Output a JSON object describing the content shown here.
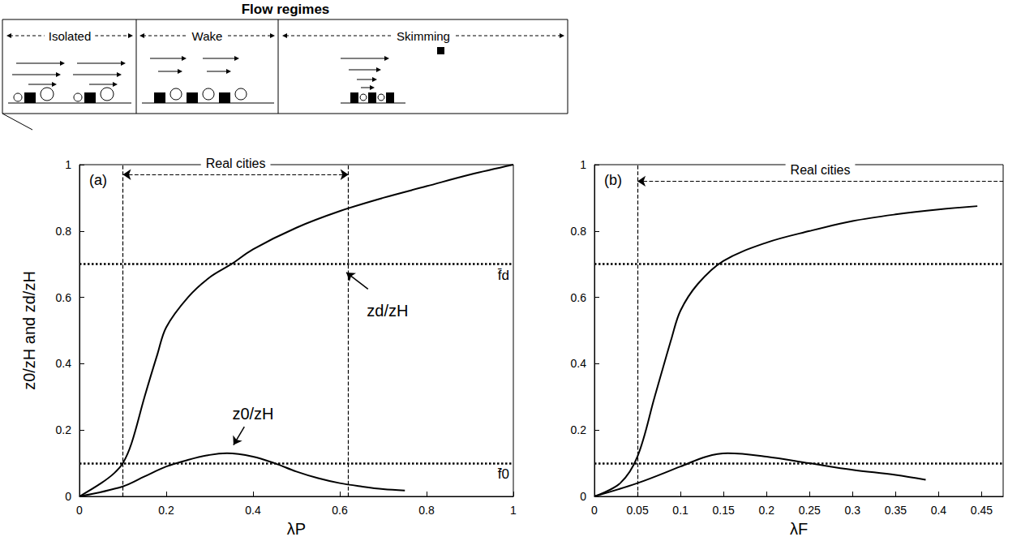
{
  "header": {
    "title": "Flow regimes",
    "regimes": [
      "Isolated",
      "Wake",
      "Skimming"
    ]
  },
  "chart_data": [
    {
      "type": "line",
      "title": "(a)",
      "xlabel": "λP",
      "ylabel": "z0/zH and zd/zH",
      "xlim": [
        0,
        1
      ],
      "xticks": [
        0,
        0.2,
        0.4,
        0.6,
        0.8,
        1
      ],
      "ylim": [
        0,
        1
      ],
      "yticks": [
        0,
        0.2,
        0.4,
        0.6,
        0.8,
        1
      ],
      "grid": false,
      "series": [
        {
          "name": "zd/zH",
          "color": "#000000",
          "line_style": "solid",
          "x": [
            0,
            0.05,
            0.08,
            0.1,
            0.12,
            0.15,
            0.18,
            0.2,
            0.25,
            0.3,
            0.35,
            0.4,
            0.5,
            0.6,
            0.7,
            0.8,
            0.9,
            1
          ],
          "values": [
            0,
            0.04,
            0.07,
            0.1,
            0.16,
            0.3,
            0.43,
            0.51,
            0.6,
            0.66,
            0.7,
            0.745,
            0.81,
            0.86,
            0.9,
            0.935,
            0.97,
            1
          ]
        },
        {
          "name": "z0/zH",
          "color": "#000000",
          "line_style": "solid",
          "x": [
            0,
            0.1,
            0.15,
            0.2,
            0.25,
            0.3,
            0.34,
            0.4,
            0.45,
            0.5,
            0.55,
            0.6,
            0.65,
            0.7,
            0.75
          ],
          "values": [
            0,
            0.03,
            0.06,
            0.09,
            0.11,
            0.125,
            0.13,
            0.12,
            0.1,
            0.075,
            0.055,
            0.04,
            0.03,
            0.022,
            0.018
          ]
        }
      ],
      "reference_lines": [
        {
          "y": 0.7,
          "label": "f̄d",
          "line_style": "dotted"
        },
        {
          "y": 0.1,
          "label": "f̄0",
          "line_style": "dotted"
        }
      ],
      "spans": [
        {
          "label": "Real cities",
          "range": [
            0.1,
            0.62
          ],
          "line_style": "dashed"
        }
      ]
    },
    {
      "type": "line",
      "title": "(b)",
      "xlabel": "λF",
      "xlim": [
        0,
        0.475
      ],
      "xticks": [
        0,
        0.05,
        0.1,
        0.15,
        0.2,
        0.25,
        0.3,
        0.35,
        0.4,
        0.45
      ],
      "ylim": [
        0,
        1
      ],
      "yticks": [
        0,
        0.2,
        0.4,
        0.6,
        0.8,
        1
      ],
      "grid": false,
      "series": [
        {
          "color": "#000000",
          "line_style": "solid",
          "x": [
            0,
            0.03,
            0.05,
            0.07,
            0.09,
            0.1,
            0.12,
            0.15,
            0.2,
            0.25,
            0.3,
            0.35,
            0.4,
            0.445
          ],
          "values": [
            0,
            0.04,
            0.12,
            0.3,
            0.48,
            0.56,
            0.64,
            0.71,
            0.765,
            0.8,
            0.83,
            0.85,
            0.865,
            0.875
          ]
        },
        {
          "color": "#000000",
          "line_style": "solid",
          "x": [
            0,
            0.05,
            0.1,
            0.13,
            0.155,
            0.2,
            0.25,
            0.3,
            0.35,
            0.385
          ],
          "values": [
            0,
            0.04,
            0.09,
            0.12,
            0.13,
            0.12,
            0.1,
            0.08,
            0.065,
            0.05
          ]
        }
      ],
      "reference_lines": [
        {
          "y": 0.7,
          "line_style": "dotted"
        },
        {
          "y": 0.1,
          "line_style": "dotted"
        }
      ],
      "spans": [
        {
          "label": "Real cities",
          "range": [
            0.05,
            0.475
          ],
          "line_style": "dashed"
        }
      ]
    }
  ]
}
